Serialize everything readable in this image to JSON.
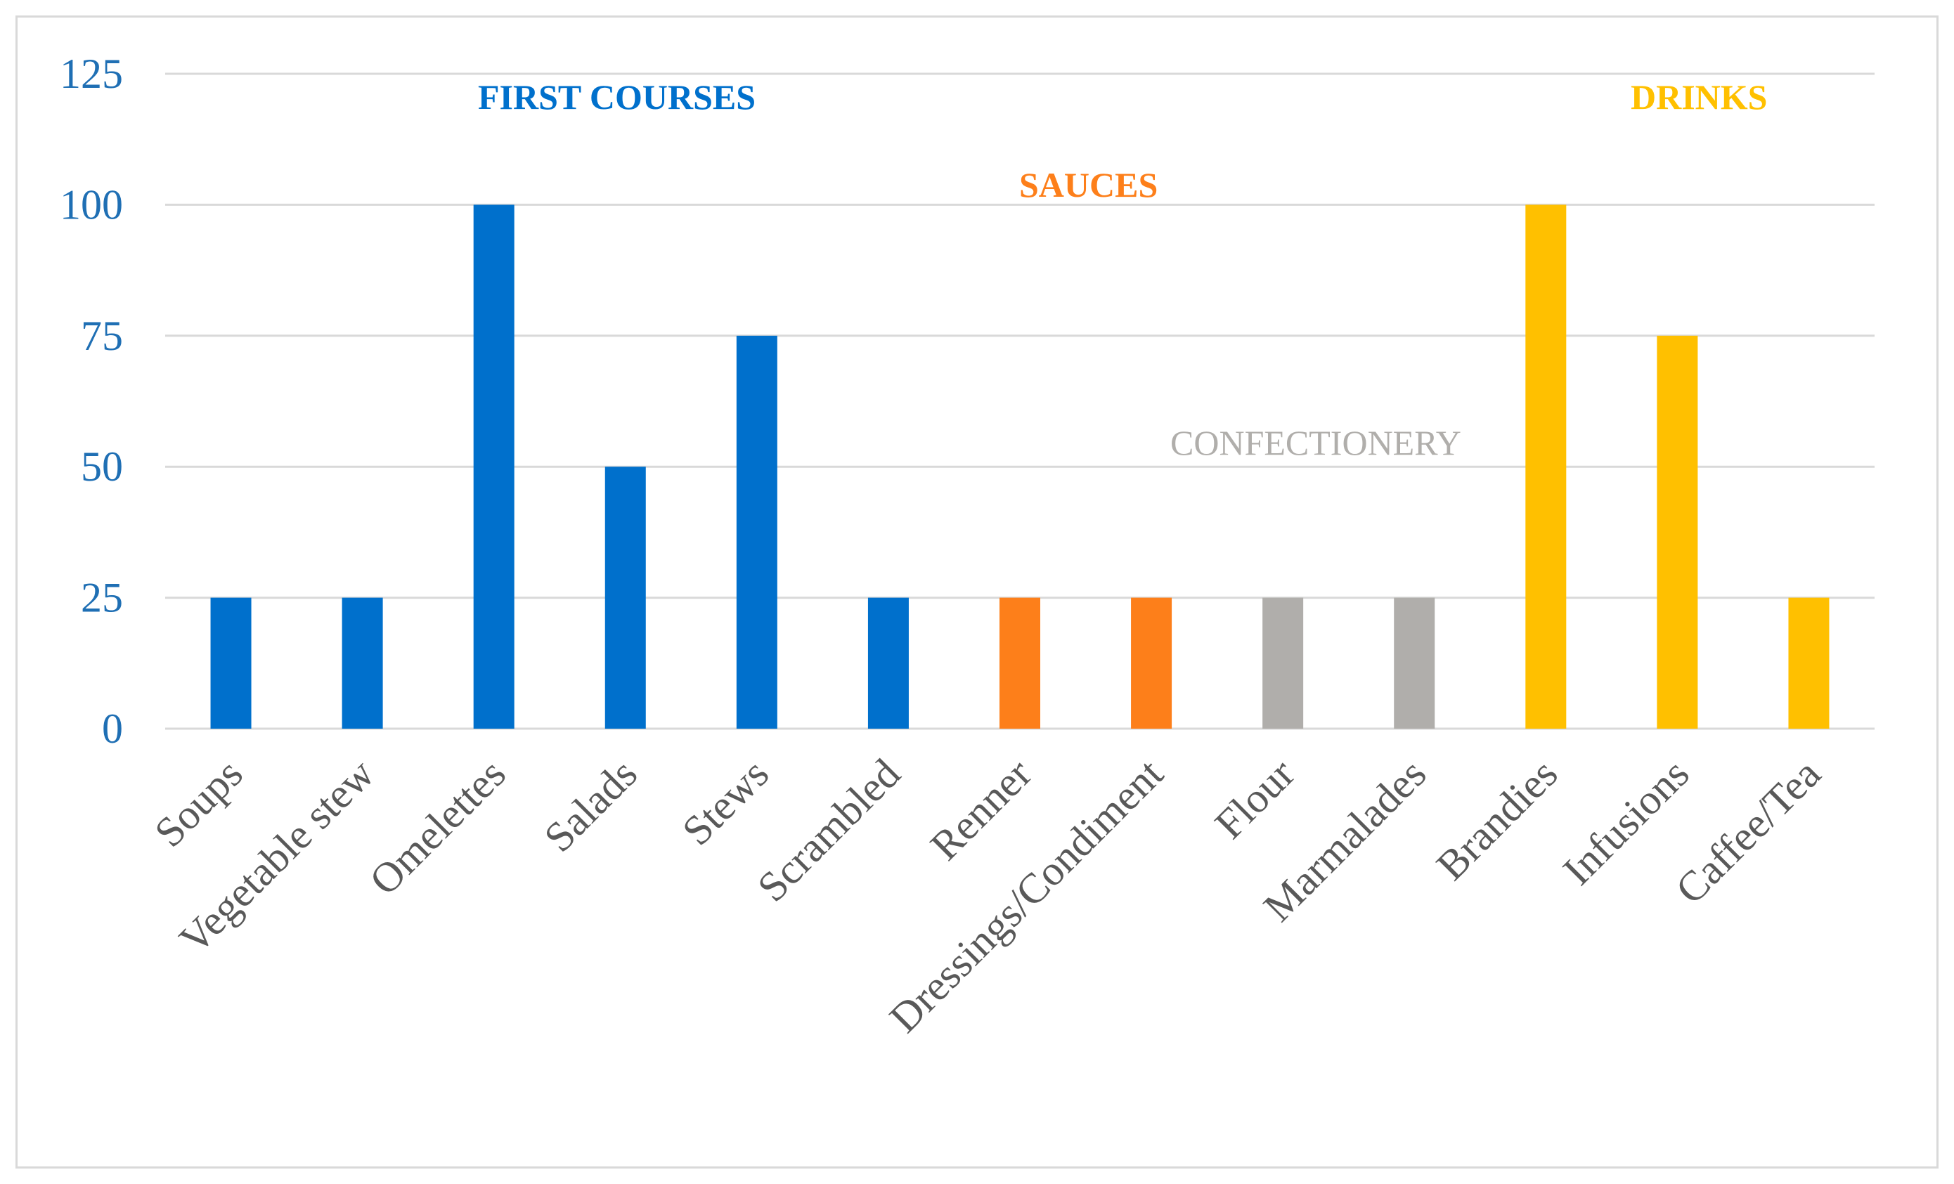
{
  "chart_data": {
    "type": "bar",
    "categories": [
      "Soups",
      "Vegetable stew",
      "Omelettes",
      "Salads",
      "Stews",
      "Scrambled",
      "Renner",
      "Dressings/Condiment",
      "Flour",
      "Marmalades",
      "Brandies",
      "Infusions",
      "Caffee/Tea"
    ],
    "values": [
      25,
      25,
      100,
      50,
      75,
      25,
      25,
      25,
      25,
      25,
      100,
      75,
      25
    ],
    "groups": [
      "FIRST COURSES",
      "FIRST COURSES",
      "FIRST COURSES",
      "FIRST COURSES",
      "FIRST COURSES",
      "FIRST COURSES",
      "SAUCES",
      "SAUCES",
      "CONFECTIONERY",
      "CONFECTIONERY",
      "DRINKS",
      "DRINKS",
      "DRINKS"
    ],
    "group_colors": {
      "FIRST COURSES": "#0070cc",
      "SAUCES": "#fd7f1a",
      "CONFECTIONERY": "#b0aeab",
      "DRINKS": "#ffc000"
    },
    "annotations": [
      {
        "text": "FIRST COURSES",
        "group": "FIRST COURSES"
      },
      {
        "text": "SAUCES",
        "group": "SAUCES"
      },
      {
        "text": "CONFECTIONERY",
        "group": "CONFECTIONERY"
      },
      {
        "text": "DRINKS",
        "group": "DRINKS"
      }
    ],
    "yticks": [
      "0",
      "25",
      "50",
      "75",
      "100",
      "125"
    ],
    "ylim": [
      0,
      125
    ],
    "title": "",
    "xlabel": "",
    "ylabel": "",
    "grid": true,
    "legend": "none"
  },
  "colors": {
    "grid": "#d9d9d9",
    "tick_label": "#1f6fb4",
    "category_label": "#595959"
  }
}
